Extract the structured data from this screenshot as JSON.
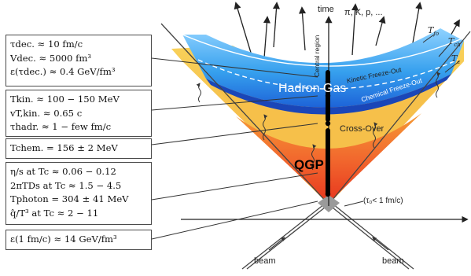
{
  "axis": {
    "time_label": "time"
  },
  "particles_label": "π, K, p, ...",
  "regions": {
    "central_region": "Central region",
    "hadron_gas": "Hadron Gas",
    "qgp": "QGP",
    "cross_over": "Cross-Over",
    "kinetic_freeze_out": "Kinetic Freeze-Out",
    "chemical_freeze_out": "Chemical Freeze-Out"
  },
  "temperature_labels": {
    "t_fo": "T",
    "t_fo_sub": "fo",
    "t_ch": "T",
    "t_ch_sub": "ch",
    "t_c": "T",
    "t_c_sub": "c"
  },
  "tau0_label": "(τ₀< 1 fm/c)",
  "beam_labels": {
    "left": "beam",
    "right": "beam"
  },
  "boxes": [
    {
      "lines": [
        "τdec. ≈ 10 fm/c",
        "Vdec. ≈ 5000 fm³",
        "ε(τdec.) ≈ 0.4 GeV/fm³"
      ]
    },
    {
      "lines": [
        "Tkin. ≈ 100 − 150 MeV",
        "vT,kin. ≈ 0.65 c",
        "τhadr. ≈ 1 − few fm/c"
      ]
    },
    {
      "lines": [
        "Tchem. = 156 ± 2 MeV"
      ]
    },
    {
      "lines": [
        "η/s at Tc ≈ 0.06 − 0.12",
        "2πTDs at Tc ≈ 1.5 − 4.5",
        "Tphoton = 304 ± 41 MeV",
        "q̂/T³ at Tc ≈ 2 − 11"
      ]
    },
    {
      "lines": [
        "ε(1 fm/c) ≈ 14 GeV/fm³"
      ]
    }
  ],
  "colors": {
    "blue_band": "#2f8fe8",
    "chemical_band": "#1a4fc8",
    "orange_outer": "#f5b437",
    "qgp_core": "#f0502a",
    "yellow_mid": "#f6c84c"
  }
}
